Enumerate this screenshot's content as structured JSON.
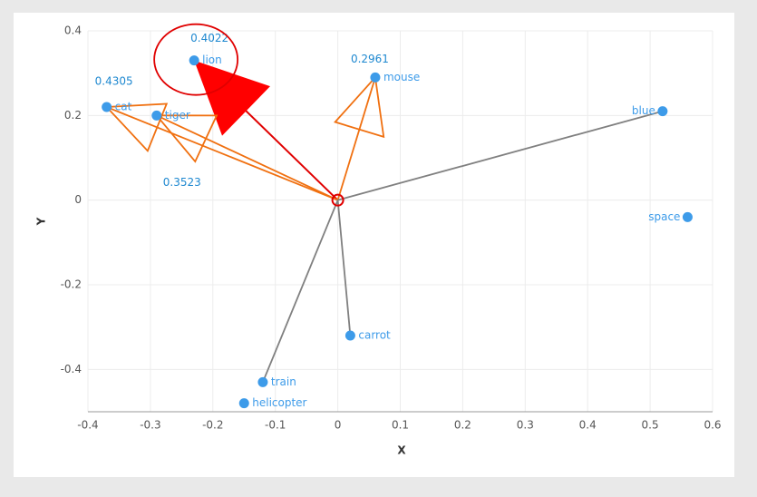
{
  "chart_data": {
    "type": "scatter",
    "xlabel": "X",
    "ylabel": "Y",
    "point_labels": [
      "lion",
      "cat",
      "tiger",
      "mouse",
      "blue",
      "space",
      "carrot",
      "train",
      "helicopter"
    ],
    "x": [
      -0.23,
      -0.37,
      -0.29,
      0.06,
      0.52,
      0.56,
      0.02,
      -0.12,
      -0.15
    ],
    "y": [
      0.33,
      0.22,
      0.2,
      0.29,
      0.21,
      -0.04,
      -0.32,
      -0.43,
      -0.48
    ],
    "similarities": [
      0.4022,
      0.4305,
      0.3523,
      0.2961,
      null,
      null,
      null,
      null,
      null
    ],
    "vector_colors": [
      "#e00000",
      "#f07010",
      "#f07010",
      "#f07010",
      "#808080",
      null,
      "#808080",
      "#808080",
      null
    ],
    "color": "#3d9be9",
    "xlim": [
      -0.4,
      0.6
    ],
    "ylim": [
      -0.5,
      0.4
    ],
    "xticks": [
      -0.4,
      -0.3,
      -0.2,
      -0.1,
      0,
      0.1,
      0.2,
      0.3,
      0.4,
      0.5,
      0.6
    ],
    "yticks": [
      -0.4,
      -0.2,
      0,
      0.2,
      0.4
    ],
    "grid": true
  }
}
